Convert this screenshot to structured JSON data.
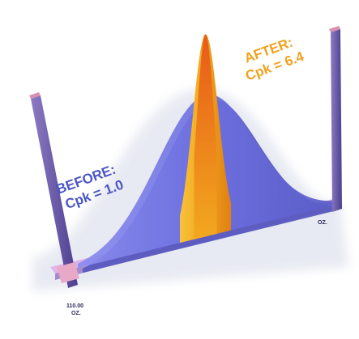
{
  "chart_data": {
    "type": "area",
    "title": "",
    "xlabel": "",
    "ylabel": "",
    "series": [
      {
        "name": "BEFORE: Cpk = 1.0",
        "kind": "distribution",
        "cpk": 1.0
      },
      {
        "name": "AFTER: Cpk = 6.4",
        "kind": "distribution",
        "cpk": 6.4
      }
    ],
    "annotations": {
      "before_title": "BEFORE:",
      "before_value": "Cpk = 1.0",
      "after_title": "AFTER:",
      "after_value": "Cpk = 6.4",
      "lower_limit_line1": "110.00",
      "lower_limit_line2": "OZ.",
      "upper_limit_line1": "",
      "upper_limit_line2": "OZ."
    },
    "colors": {
      "before": "#7a7ee8",
      "after": "#f2a81e",
      "limit_post": "#6b5ab0",
      "base": "#c9a6d8"
    },
    "legend": "none",
    "grid": false
  }
}
